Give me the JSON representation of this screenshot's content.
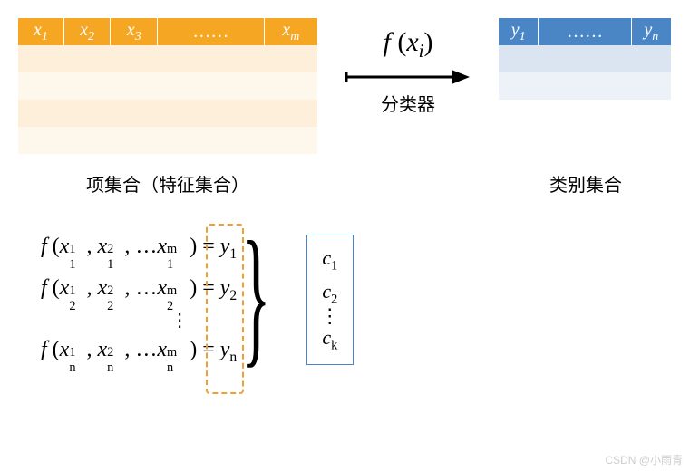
{
  "left_table": {
    "header_bg": "#f5a623",
    "header_border": "#ffffff",
    "headers": [
      "x₁",
      "x₂",
      "x₃",
      "……",
      "xₘ"
    ],
    "row_colors": [
      "#fdefd9",
      "#fef7ec",
      "#fdefd9",
      "#fef7ec"
    ],
    "caption": "项集合（特征集合）"
  },
  "function": {
    "expr": "f (xᵢ)",
    "arrow_color": "#000000",
    "label": "分类器"
  },
  "right_table": {
    "header_bg": "#4a86c5",
    "header_border": "#ffffff",
    "headers": [
      "y₁",
      "……",
      "yₙ"
    ],
    "row_colors": [
      "#dbe5f1",
      "#edf2f9"
    ],
    "caption": "类别集合"
  },
  "formulas": {
    "lines": [
      {
        "sup": "1",
        "sub": "1",
        "sup2": "2",
        "sub2": "1",
        "supm": "m",
        "subm": "1",
        "y": "1"
      },
      {
        "sup": "1",
        "sub": "2",
        "sup2": "2",
        "sub2": "2",
        "supm": "m",
        "subm": "2",
        "y": "2"
      },
      {
        "sup": "1",
        "sub": "n",
        "sup2": "2",
        "sub2": "n",
        "supm": "m",
        "subm": "n",
        "y": "n"
      }
    ],
    "dashed_color": "#f0a030"
  },
  "class_box": {
    "border": "#4a86c5",
    "items": [
      "c₁",
      "c₂",
      "cₖ"
    ]
  },
  "watermark": "CSDN @小雨青"
}
